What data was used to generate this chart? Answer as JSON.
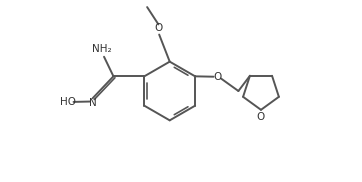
{
  "bg_color": "#ffffff",
  "line_color": "#555555",
  "text_color": "#333333",
  "line_width": 1.4,
  "font_size": 7.5,
  "figsize": [
    3.62,
    1.82
  ],
  "dpi": 100,
  "xlim": [
    0,
    9.0
  ],
  "ylim": [
    0,
    4.8
  ],
  "bx": 4.2,
  "by": 2.4,
  "r": 0.78
}
